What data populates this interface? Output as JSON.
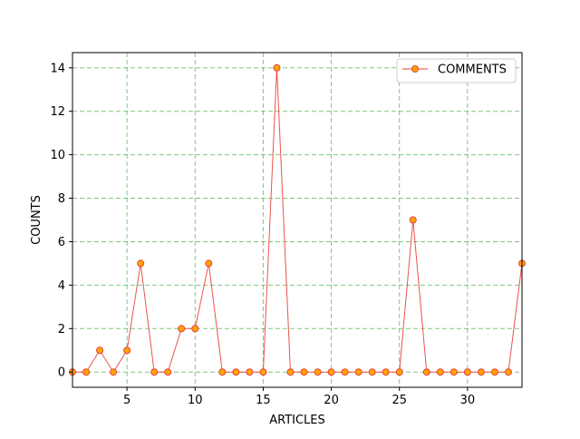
{
  "chart_data": {
    "type": "line",
    "title": "",
    "xlabel": "ARTICLES",
    "ylabel": "COUNTS",
    "xlim": [
      1,
      34
    ],
    "ylim": [
      -0.7,
      14.7
    ],
    "x_ticks": [
      5,
      10,
      15,
      20,
      25,
      30
    ],
    "y_ticks": [
      0,
      2,
      4,
      6,
      8,
      10,
      12,
      14
    ],
    "grid": true,
    "grid_color": "#2ca02c",
    "legend_position": "upper right",
    "series": [
      {
        "name": "COMMENTS",
        "line_color": "#e8403a",
        "marker_face": "#ffa500",
        "marker_edge": "#e8403a",
        "x": [
          1,
          2,
          3,
          4,
          5,
          6,
          7,
          8,
          9,
          10,
          11,
          12,
          13,
          14,
          15,
          16,
          17,
          18,
          19,
          20,
          21,
          22,
          23,
          24,
          25,
          26,
          27,
          28,
          29,
          30,
          31,
          32,
          33,
          34
        ],
        "values": [
          0,
          0,
          1,
          0,
          1,
          5,
          0,
          0,
          2,
          2,
          5,
          0,
          0,
          0,
          0,
          14,
          0,
          0,
          0,
          0,
          0,
          0,
          0,
          0,
          0,
          7,
          0,
          0,
          0,
          0,
          0,
          0,
          0,
          5
        ]
      }
    ]
  }
}
